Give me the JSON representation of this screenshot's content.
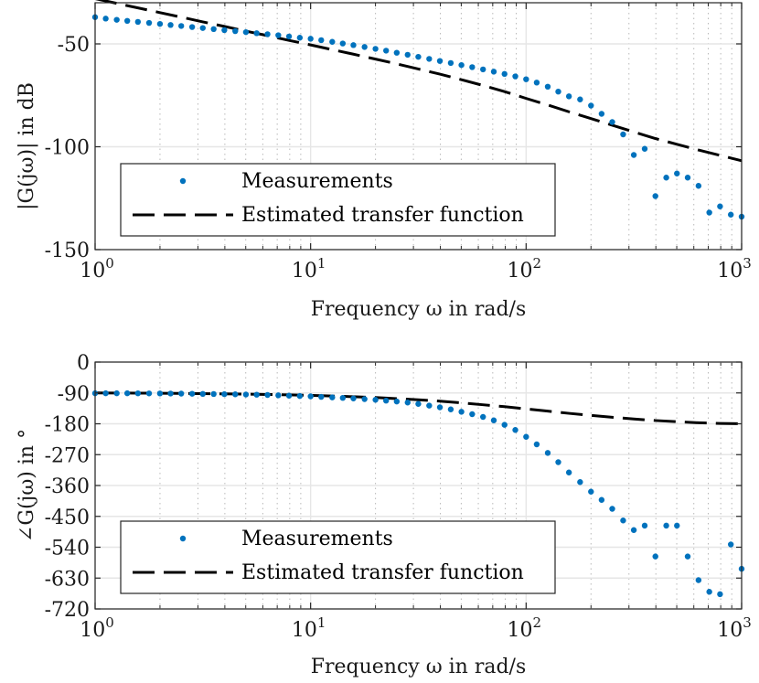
{
  "colors": {
    "measurement": "#0072BD",
    "estimate": "#000000",
    "grid": "#e6e6e6",
    "minor_grid": "#b8b8b8"
  },
  "chart_data": [
    {
      "type": "scatter",
      "id": "magnitude",
      "xscale": "log",
      "xlim": [
        1,
        1000
      ],
      "ylim": [
        -150,
        -30
      ],
      "yticks": [
        -50,
        -100,
        -150
      ],
      "ytick_labels": [
        "-50",
        "-100",
        "-150"
      ],
      "xticks": [
        1,
        10,
        100,
        1000
      ],
      "xtick_base": "10",
      "xtick_exponents": [
        "0",
        "1",
        "2",
        "3"
      ],
      "xlabel": "Frequency ω in rad/s",
      "ylabel": "|G(jω)| in dB",
      "legend": {
        "placement": "bottom-left",
        "entries": [
          "Measurements",
          "Estimated transfer function"
        ]
      },
      "series": [
        {
          "name": "Measurements",
          "style": "dots",
          "x": [
            1,
            1.12,
            1.26,
            1.41,
            1.58,
            1.78,
            2,
            2.24,
            2.51,
            2.82,
            3.16,
            3.55,
            3.98,
            4.47,
            5.01,
            5.62,
            6.31,
            7.08,
            7.94,
            8.91,
            10,
            11.2,
            12.6,
            14.1,
            15.8,
            17.8,
            20,
            22.4,
            25.1,
            28.2,
            31.6,
            35.5,
            39.8,
            44.7,
            50.1,
            56.2,
            63.1,
            70.8,
            79.4,
            89.1,
            100,
            112,
            126,
            141,
            158,
            178,
            200,
            224,
            251,
            282,
            316,
            355,
            398,
            447,
            501,
            562,
            631,
            708,
            794,
            891,
            1000
          ],
          "values": [
            -37,
            -37.7,
            -38.3,
            -38.8,
            -39.3,
            -39.8,
            -40.3,
            -40.8,
            -41.3,
            -41.8,
            -42.3,
            -42.8,
            -43.3,
            -43.8,
            -44.3,
            -44.8,
            -45.3,
            -45.8,
            -46.4,
            -47,
            -47.5,
            -48.2,
            -49,
            -49.8,
            -50.6,
            -51.5,
            -52.4,
            -53.3,
            -54.3,
            -55.3,
            -56.3,
            -57.3,
            -58.3,
            -59.3,
            -60.3,
            -61.3,
            -62.4,
            -63.5,
            -64.6,
            -65.8,
            -67.2,
            -68.8,
            -70.8,
            -73.2,
            -75.5,
            -77,
            -80,
            -84,
            -88,
            -94,
            -104,
            -101,
            -124,
            -115,
            -113,
            -115,
            -119,
            -132,
            -129,
            -133,
            -134
          ]
        },
        {
          "name": "Estimated transfer function",
          "style": "dashed",
          "x": [
            1,
            1.26,
            1.58,
            2,
            2.51,
            3.16,
            3.98,
            5.01,
            6.31,
            7.94,
            10,
            12.6,
            15.8,
            20,
            25.1,
            31.6,
            39.8,
            50.1,
            63.1,
            79.4,
            100,
            126,
            158,
            200,
            251,
            316,
            398,
            501,
            631,
            794,
            1000
          ],
          "values": [
            -28,
            -30.3,
            -32.5,
            -34.8,
            -37,
            -39.3,
            -41.5,
            -43.8,
            -46,
            -48.3,
            -50.5,
            -52.8,
            -55,
            -57.4,
            -59.7,
            -62.2,
            -64.7,
            -67.4,
            -70.2,
            -73.2,
            -76.5,
            -79.7,
            -83,
            -86.3,
            -89.5,
            -92.8,
            -96,
            -98.8,
            -101.6,
            -104.2,
            -106.8
          ]
        }
      ]
    },
    {
      "type": "scatter",
      "id": "phase",
      "xscale": "log",
      "xlim": [
        1,
        1000
      ],
      "ylim": [
        -720,
        0
      ],
      "yticks": [
        0,
        -90,
        -180,
        -270,
        -360,
        -450,
        -540,
        -630,
        -720
      ],
      "ytick_labels": [
        "0",
        "-90",
        "-180",
        "-270",
        "-360",
        "-450",
        "-540",
        "-630",
        "-720"
      ],
      "xticks": [
        1,
        10,
        100,
        1000
      ],
      "xtick_base": "10",
      "xtick_exponents": [
        "0",
        "1",
        "2",
        "3"
      ],
      "xlabel": "Frequency ω in rad/s",
      "ylabel": "∠G(jω) in °",
      "legend": {
        "placement": "bottom-left",
        "entries": [
          "Measurements",
          "Estimated transfer function"
        ]
      },
      "series": [
        {
          "name": "Measurements",
          "style": "dots",
          "x": [
            1,
            1.12,
            1.26,
            1.41,
            1.58,
            1.78,
            2,
            2.24,
            2.51,
            2.82,
            3.16,
            3.55,
            3.98,
            4.47,
            5.01,
            5.62,
            6.31,
            7.08,
            7.94,
            8.91,
            10,
            11.2,
            12.6,
            14.1,
            15.8,
            17.8,
            20,
            22.4,
            25.1,
            28.2,
            31.6,
            35.5,
            39.8,
            44.7,
            50.1,
            56.2,
            63.1,
            70.8,
            79.4,
            89.1,
            100,
            112,
            126,
            141,
            158,
            178,
            200,
            224,
            251,
            282,
            316,
            355,
            398,
            447,
            501,
            562,
            631,
            708,
            794,
            891,
            1000
          ],
          "values": [
            -91,
            -91,
            -91,
            -91,
            -91.2,
            -91.4,
            -91.6,
            -91.8,
            -92,
            -92.4,
            -92.8,
            -93.2,
            -93.6,
            -94,
            -94.6,
            -95.2,
            -96,
            -97,
            -98,
            -99,
            -100,
            -101.5,
            -103,
            -104.5,
            -106,
            -108,
            -110,
            -112.5,
            -115,
            -118,
            -122,
            -127,
            -132,
            -138,
            -145,
            -152,
            -160,
            -170,
            -183,
            -198,
            -218,
            -240,
            -265,
            -292,
            -322,
            -350,
            -378,
            -402,
            -428,
            -462,
            -490,
            -477,
            -567,
            -477,
            -477,
            -567,
            -636,
            -670,
            -677,
            -532,
            -603
          ]
        },
        {
          "name": "Estimated transfer function",
          "style": "dashed",
          "x": [
            1,
            1.26,
            1.58,
            2,
            2.51,
            3.16,
            3.98,
            5.01,
            6.31,
            7.94,
            10,
            12.6,
            15.8,
            20,
            25.1,
            31.6,
            39.8,
            50.1,
            63.1,
            79.4,
            100,
            126,
            158,
            200,
            251,
            316,
            398,
            501,
            631,
            794,
            1000
          ],
          "values": [
            -90,
            -90.3,
            -90.6,
            -91,
            -91.5,
            -92,
            -92.7,
            -93.5,
            -94.5,
            -95.7,
            -97,
            -99,
            -101,
            -103.5,
            -106.5,
            -110,
            -114,
            -119,
            -124.5,
            -130,
            -136.5,
            -143,
            -149.5,
            -155.5,
            -161,
            -166,
            -170.5,
            -174,
            -177,
            -179,
            -180
          ]
        }
      ]
    }
  ]
}
